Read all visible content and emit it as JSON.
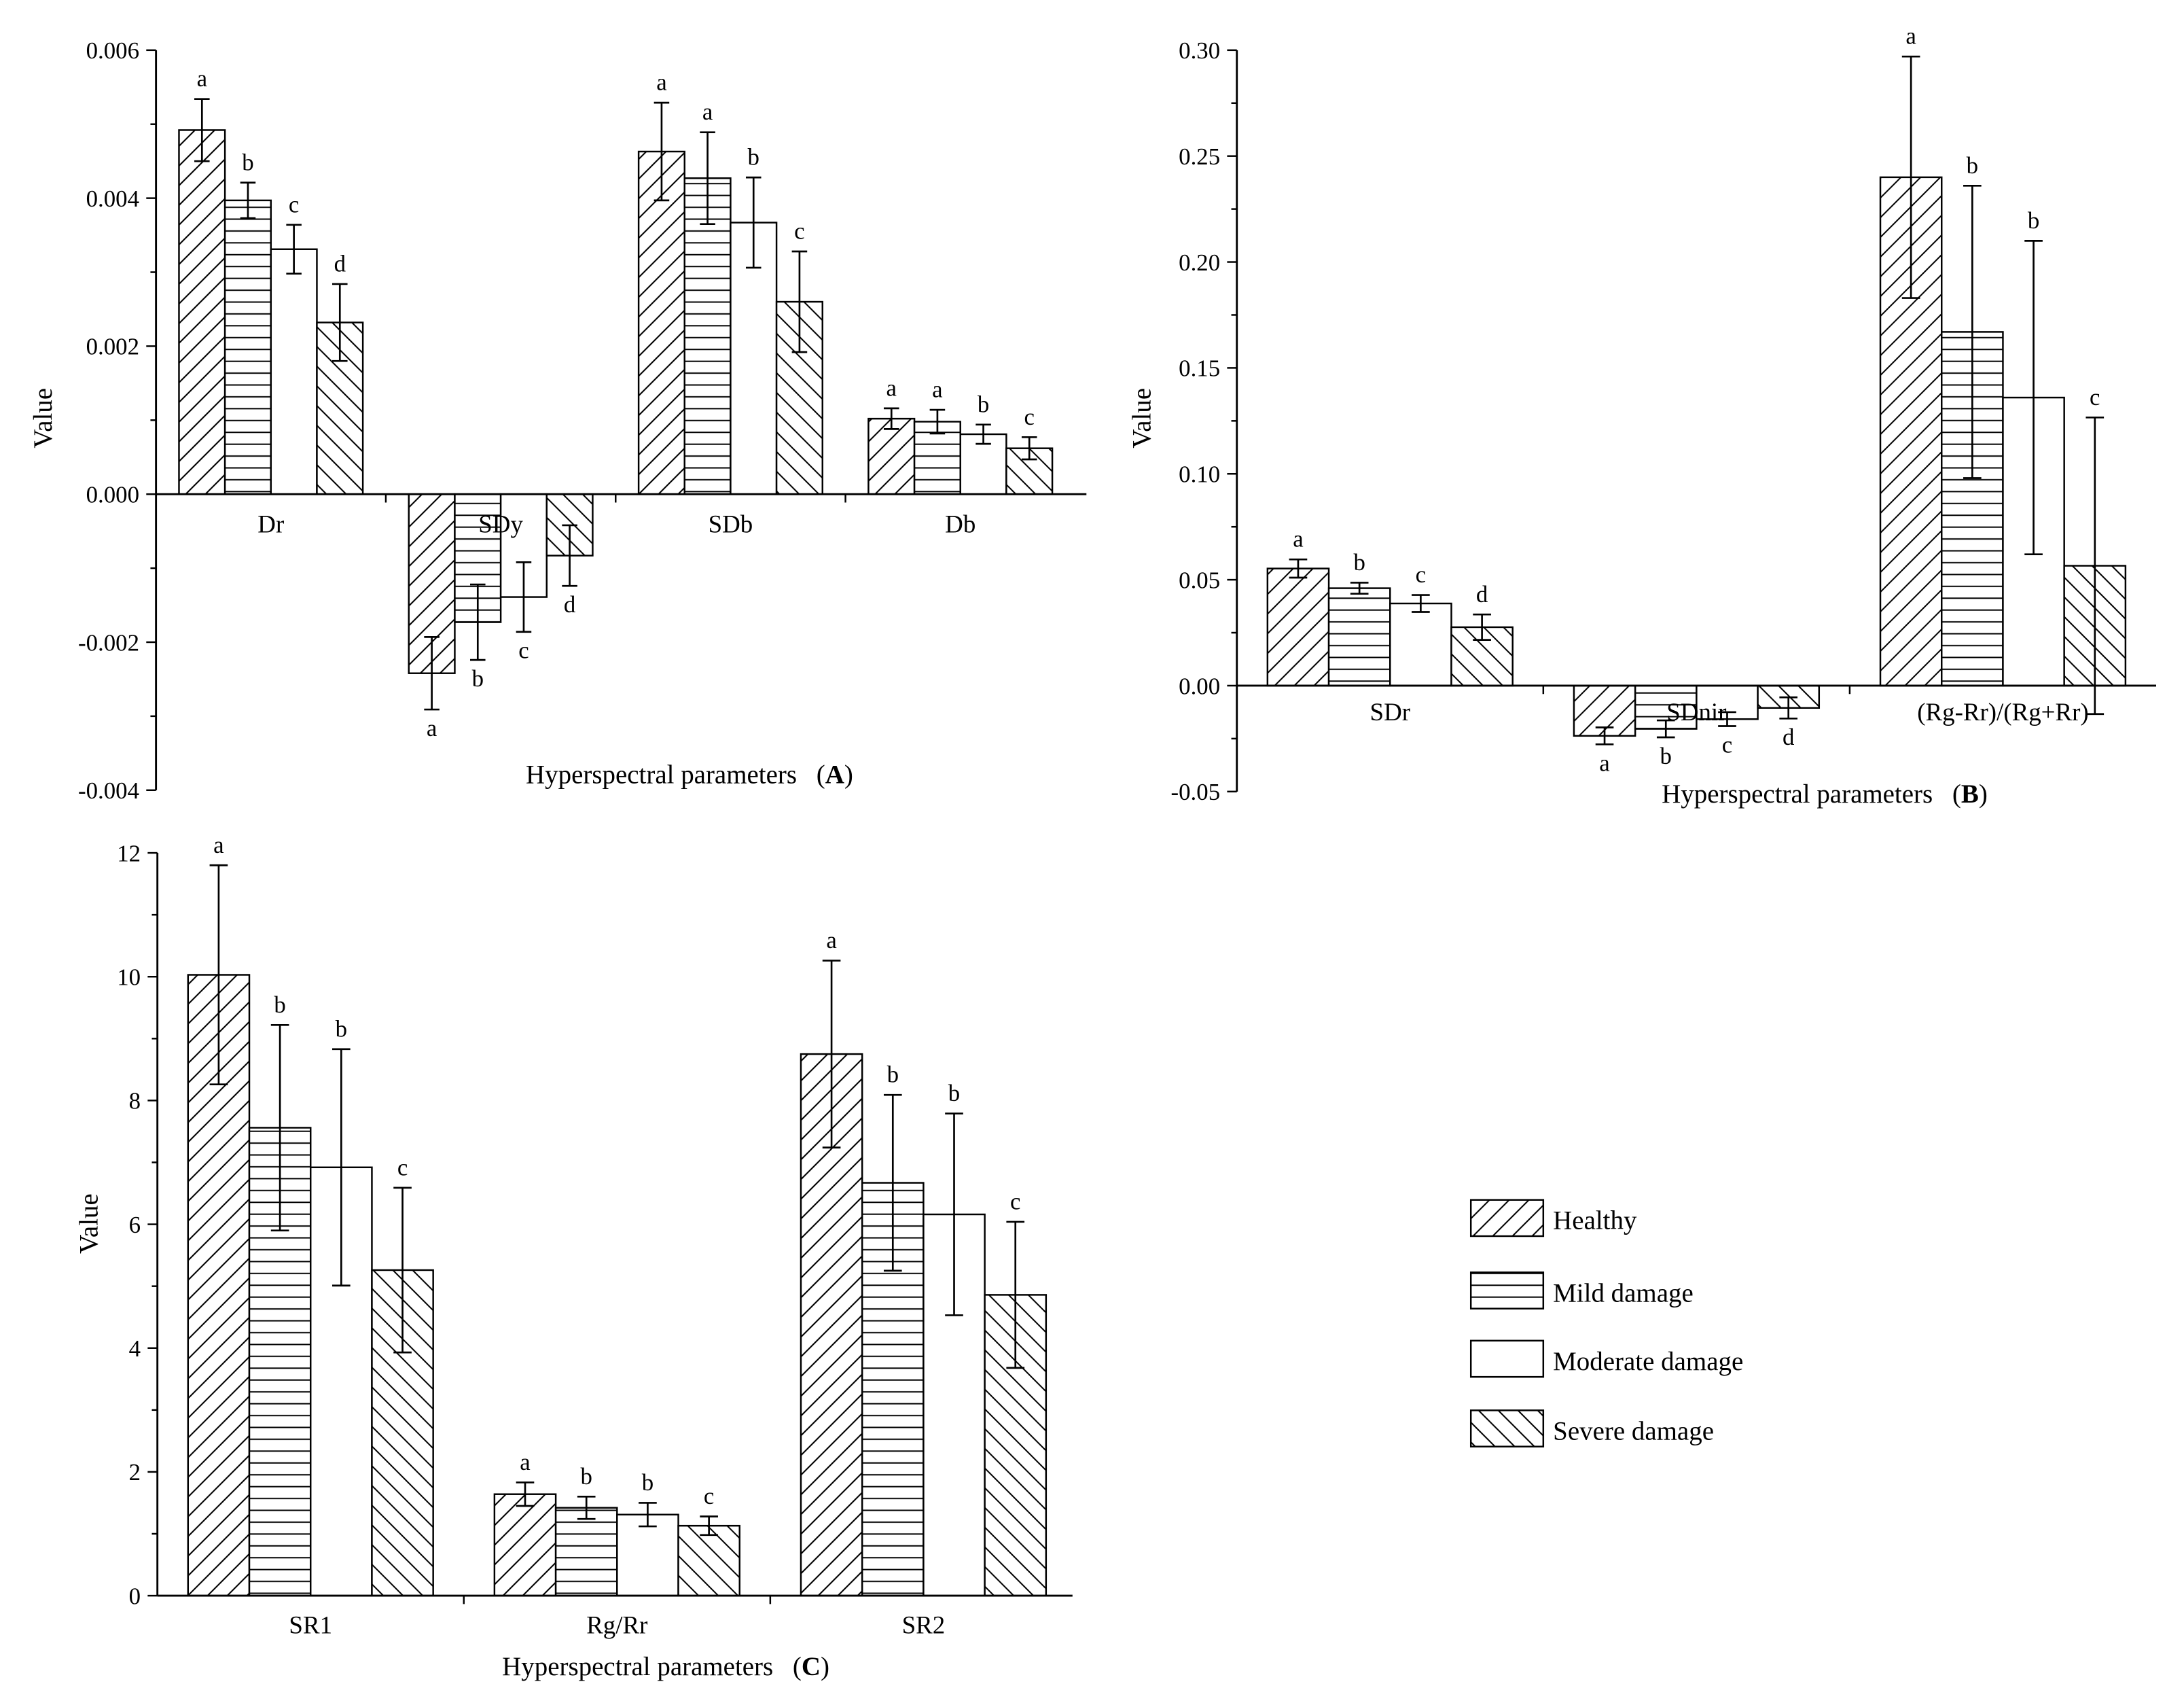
{
  "chart_data": [
    {
      "panel": "A",
      "type": "bar",
      "xlabel": "Hyperspectral parameters",
      "ylabel": "Value",
      "ylim": [
        -0.004,
        0.006
      ],
      "yticks": [
        "-0.004",
        "-0.002",
        "0.000",
        "0.002",
        "0.004",
        "0.006"
      ],
      "categories": [
        "Dr",
        "SDy",
        "SDb",
        "Db"
      ],
      "series": [
        {
          "name": "Healthy",
          "values": [
            0.00492,
            -0.00242,
            0.00463,
            0.00102
          ],
          "errors": [
            0.00042,
            0.00049,
            0.00066,
            0.00014
          ],
          "letters": [
            "a",
            "a",
            "a",
            "a"
          ]
        },
        {
          "name": "Mild damage",
          "values": [
            0.00397,
            -0.00173,
            0.00427,
            0.00098
          ],
          "errors": [
            0.00024,
            0.00051,
            0.00062,
            0.00016
          ],
          "letters": [
            "b",
            "b",
            "a",
            "a"
          ]
        },
        {
          "name": "Moderate damage",
          "values": [
            0.00331,
            -0.00139,
            0.00367,
            0.00081
          ],
          "errors": [
            0.00033,
            0.00047,
            0.00061,
            0.00013
          ],
          "letters": [
            "c",
            "c",
            "b",
            "b"
          ]
        },
        {
          "name": "Severe damage",
          "values": [
            0.00232,
            -0.00083,
            0.0026,
            0.00062
          ],
          "errors": [
            0.00052,
            0.00041,
            0.00068,
            0.00015
          ],
          "letters": [
            "d",
            "d",
            "c",
            "c"
          ]
        }
      ]
    },
    {
      "panel": "B",
      "type": "bar",
      "xlabel": "Hyperspectral parameters",
      "ylabel": "Value",
      "ylim": [
        -0.05,
        0.3
      ],
      "yticks": [
        "-0.05",
        "0.00",
        "0.05",
        "0.10",
        "0.15",
        "0.20",
        "0.25",
        "0.30"
      ],
      "categories": [
        "SDr",
        "SDnir",
        "(Rg-Rr)/(Rg+Rr)"
      ],
      "series": [
        {
          "name": "Healthy",
          "values": [
            0.0553,
            -0.0237,
            0.24
          ],
          "errors": [
            0.0043,
            0.004,
            0.057
          ],
          "letters": [
            "a",
            "a",
            "a"
          ]
        },
        {
          "name": "Mild damage",
          "values": [
            0.046,
            -0.0204,
            0.167
          ],
          "errors": [
            0.0026,
            0.004,
            0.069
          ],
          "letters": [
            "b",
            "b",
            "b"
          ]
        },
        {
          "name": "Moderate damage",
          "values": [
            0.0388,
            -0.0158,
            0.136
          ],
          "errors": [
            0.004,
            0.0033,
            0.074
          ],
          "letters": [
            "c",
            "c",
            "b"
          ]
        },
        {
          "name": "Severe damage",
          "values": [
            0.0276,
            -0.0105,
            0.0566
          ],
          "errors": [
            0.006,
            0.005,
            0.07
          ],
          "letters": [
            "d",
            "d",
            "c"
          ]
        }
      ]
    },
    {
      "panel": "C",
      "type": "bar",
      "xlabel": "Hyperspectral parameters",
      "ylabel": "Value",
      "ylim": [
        0,
        12
      ],
      "yticks": [
        "0",
        "2",
        "4",
        "6",
        "8",
        "10",
        "12"
      ],
      "categories": [
        "SR1",
        "Rg/Rr",
        "SR2"
      ],
      "series": [
        {
          "name": "Healthy",
          "values": [
            10.03,
            1.64,
            8.75
          ],
          "errors": [
            1.77,
            0.19,
            1.51
          ],
          "letters": [
            "a",
            "a",
            "a"
          ]
        },
        {
          "name": "Mild damage",
          "values": [
            7.56,
            1.42,
            6.67
          ],
          "errors": [
            1.66,
            0.18,
            1.42
          ],
          "letters": [
            "b",
            "b",
            "b"
          ]
        },
        {
          "name": "Moderate damage",
          "values": [
            6.92,
            1.31,
            6.16
          ],
          "errors": [
            1.91,
            0.19,
            1.63
          ],
          "letters": [
            "b",
            "b",
            "b"
          ]
        },
        {
          "name": "Severe damage",
          "values": [
            5.26,
            1.13,
            4.86
          ],
          "errors": [
            1.33,
            0.15,
            1.18
          ],
          "letters": [
            "c",
            "c",
            "c"
          ]
        }
      ]
    }
  ]
}
